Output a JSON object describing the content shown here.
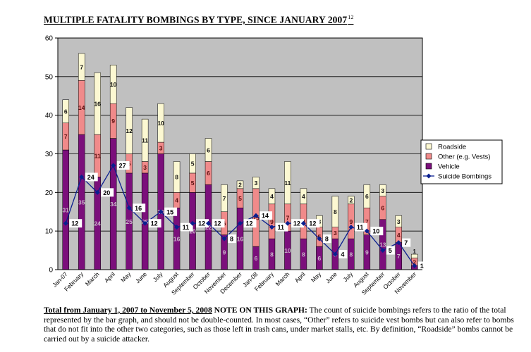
{
  "page": {
    "title": "MULTIPLE FATALITY BOMBINGS BY TYPE, SINCE JANUARY 2007",
    "title_footnote_ref": "12",
    "footnote_lead": "Total from January 1, 2007 to November 5, 2008",
    "footnote_note_label": " NOTE ON THIS GRAPH:",
    "footnote_body": " The count of suicide bombings refers to the ratio of the total represented by the bar graph, and should not be double-counted.  In most cases, “Other” refers to suicide vest bombs but can also refer to bombs that do not fit into the other two categories, such as those left in trash cans, under market stalls, etc. By definition, “Roadside” bombs cannot be carried out by a suicide attacker."
  },
  "chart_data": {
    "type": "bar",
    "stacked": true,
    "categories": [
      "Jan-07",
      "February",
      "March",
      "April",
      "May",
      "June",
      "July",
      "August",
      "September",
      "October",
      "November",
      "December",
      "Jan-08",
      "February",
      "March",
      "April",
      "May",
      "June",
      "July",
      "August",
      "September",
      "October",
      "November"
    ],
    "series": [
      {
        "name": "Vehicle",
        "color": "#7b0f7b",
        "values": [
          31,
          35,
          24,
          34,
          25,
          25,
          30,
          16,
          20,
          22,
          9,
          16,
          6,
          8,
          10,
          8,
          6,
          8,
          8,
          9,
          13,
          7,
          1
        ],
        "labels": [
          "31",
          "35",
          "24",
          "34",
          "25",
          "25",
          "30",
          "16",
          "20",
          "22",
          "9",
          "16",
          "6",
          "8",
          "10",
          "8",
          "6",
          "8",
          "8",
          "9",
          "13",
          "7",
          "1"
        ]
      },
      {
        "name": "Other (e.g. Vests)",
        "color": "#f08a8a",
        "values": [
          7,
          14,
          11,
          9,
          5,
          3,
          3,
          4,
          5,
          6,
          6,
          5,
          15,
          9,
          7,
          9,
          5,
          3,
          9,
          7,
          6,
          4,
          2
        ],
        "labels": [
          "7",
          "14",
          "11",
          "9",
          "5",
          "3",
          "3",
          "4",
          "5",
          "6",
          "6",
          "5",
          "15",
          "9",
          "7",
          "9",
          "5",
          "3",
          "9",
          "7",
          "6",
          "4",
          "2"
        ]
      },
      {
        "name": "Roadside",
        "color": "#fcf8d2",
        "values": [
          6,
          7,
          16,
          10,
          12,
          11,
          10,
          8,
          5,
          6,
          7,
          2,
          3,
          4,
          11,
          4,
          3,
          8,
          2,
          6,
          3,
          3,
          1
        ],
        "labels": [
          "6",
          "7",
          "16",
          "10",
          "12",
          "11",
          "10",
          "8",
          "5",
          "6",
          "7",
          "2",
          "3",
          "4",
          "11",
          "4",
          "3",
          "8",
          "2",
          "6",
          "3",
          "3",
          "1"
        ]
      }
    ],
    "line": {
      "name": "Suicide Bombings",
      "color": "#0a1f8f",
      "values": [
        12,
        24,
        20,
        27,
        16,
        12,
        15,
        11,
        12,
        12,
        8,
        12,
        14,
        11,
        12,
        12,
        8,
        4,
        11,
        10,
        5,
        7,
        1
      ],
      "labels": [
        "12",
        "24",
        "20",
        "27",
        "16",
        "12",
        "15",
        "11",
        "12",
        "12",
        "8",
        "12",
        "14",
        "11",
        "12",
        "12",
        "8",
        "4",
        "11",
        "10",
        "5",
        "7",
        "1"
      ]
    },
    "legend_order": [
      "Roadside",
      "Other (e.g. Vests)",
      "Vehicle",
      "Suicide Bombings"
    ],
    "legend_position": "right",
    "ylim": [
      0,
      60
    ],
    "yticks": [
      "0",
      "10",
      "20",
      "30",
      "40",
      "50",
      "60"
    ],
    "grid": true,
    "plot_background": "#c0c0c0"
  }
}
